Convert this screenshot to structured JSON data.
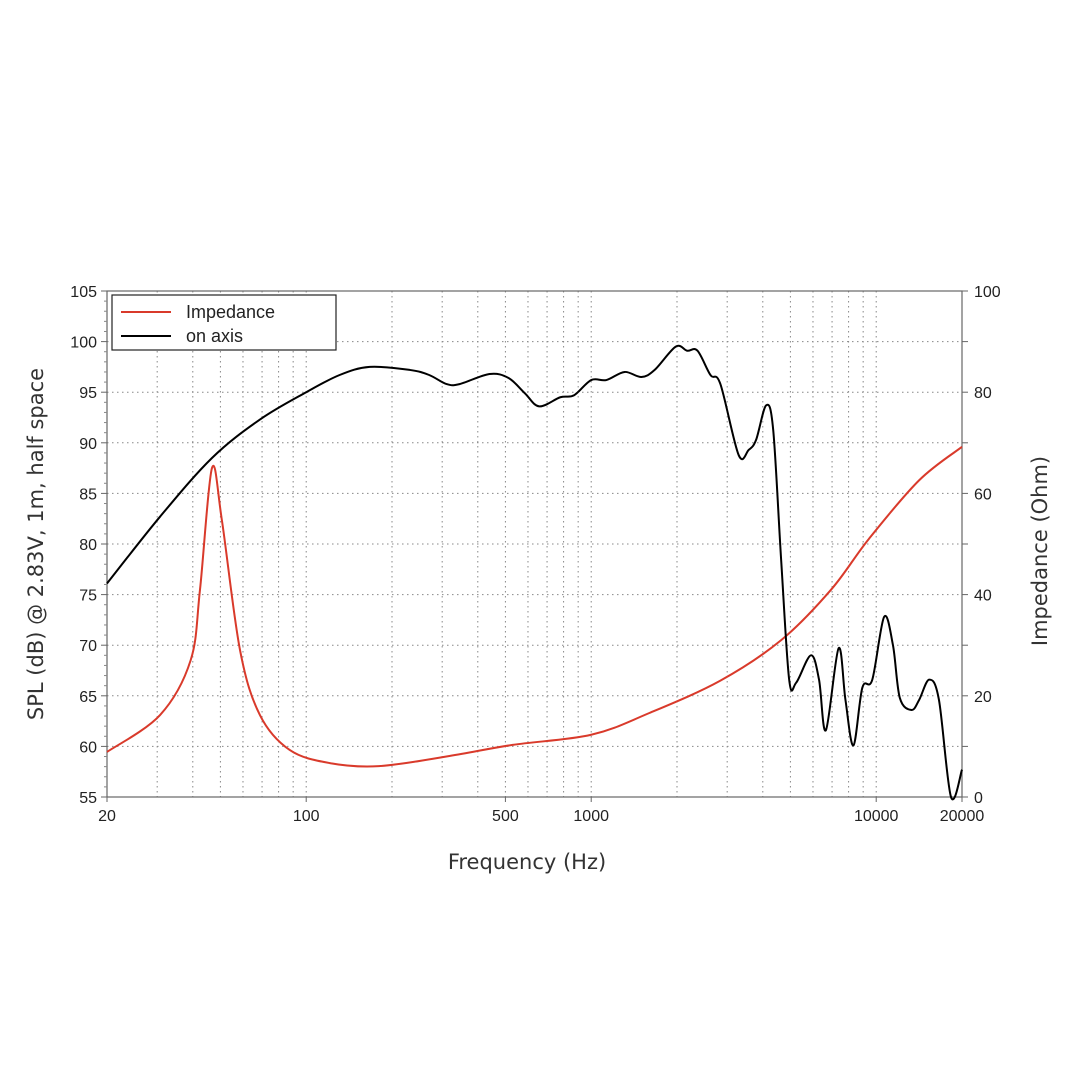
{
  "chart_data": {
    "type": "line",
    "title": "",
    "xlabel": "Frequency (Hz)",
    "ylabel": "SPL (dB) @ 2.83V, 1m, half space",
    "y2label": "Impedance (Ohm)",
    "xscale": "log",
    "xlim": [
      20,
      20000
    ],
    "ylim": [
      55,
      105
    ],
    "y2lim": [
      0,
      100
    ],
    "grid": true,
    "legend_position": "top-left",
    "xticks": [
      "20",
      "100",
      "500",
      "1000",
      "10000",
      "20000"
    ],
    "xtick_values": [
      20,
      100,
      500,
      1000,
      10000,
      20000
    ],
    "yticks": [
      "55",
      "60",
      "65",
      "70",
      "75",
      "80",
      "85",
      "90",
      "95",
      "100",
      "105"
    ],
    "y2ticks": [
      "0",
      "20",
      "40",
      "60",
      "80",
      "100"
    ],
    "series": [
      {
        "name": "Impedance",
        "axis": "right",
        "color": "#d93a2b",
        "x": [
          20,
          30.7,
          39.3,
          42.4,
          46.7,
          50.6,
          58.6,
          68.8,
          87.5,
          121,
          180,
          318,
          530,
          1000,
          1600,
          2840,
          4640,
          6950,
          9420,
          14150,
          20000
        ],
        "y": [
          8.9,
          16.2,
          27,
          41,
          65,
          54.7,
          29,
          16.2,
          9.3,
          6.7,
          6.1,
          8.1,
          10.3,
          12.3,
          16.6,
          23,
          31,
          41,
          51,
          62.6,
          69.2
        ]
      },
      {
        "name": "on axis",
        "axis": "left",
        "color": "#000000",
        "x": [
          20,
          30.7,
          46.7,
          68.8,
          100,
          131,
          167,
          231,
          270,
          311,
          345,
          440,
          513,
          585,
          657,
          779,
          871,
          1000,
          1130,
          1310,
          1500,
          1670,
          1980,
          2170,
          2360,
          2620,
          2840,
          3290,
          3570,
          3790,
          4110,
          4350,
          4640,
          4950,
          5240,
          5900,
          6300,
          6660,
          7380,
          7800,
          8320,
          8940,
          9690,
          10660,
          11450,
          12100,
          13300,
          14150,
          15350,
          16600,
          18300,
          20000
        ],
        "y": [
          76.1,
          82.7,
          88.5,
          92.3,
          95.0,
          96.7,
          97.5,
          97.2,
          96.7,
          95.8,
          95.8,
          96.8,
          96.4,
          94.9,
          93.6,
          94.5,
          94.7,
          96.2,
          96.2,
          97.0,
          96.5,
          97.2,
          99.5,
          99.1,
          99.1,
          96.7,
          95.8,
          88.8,
          89.3,
          90.3,
          93.7,
          91.3,
          78.4,
          66.6,
          66.3,
          69.0,
          66.6,
          61.6,
          69.7,
          64.6,
          60.1,
          65.8,
          66.6,
          72.8,
          70.0,
          64.8,
          63.6,
          64.6,
          66.6,
          64.6,
          55,
          57.7
        ]
      }
    ]
  }
}
